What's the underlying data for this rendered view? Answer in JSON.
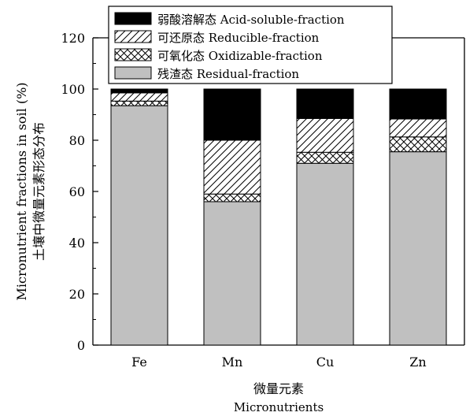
{
  "chart_data": {
    "type": "bar",
    "stacked": true,
    "categories": [
      "Fe",
      "Mn",
      "Cu",
      "Zn"
    ],
    "series": [
      {
        "name": "残渣态 Residual-fraction",
        "values": [
          93.5,
          56,
          71,
          75.5
        ],
        "fill": "#c0c0c0",
        "pattern": "solid"
      },
      {
        "name": "可氧化态 Oxidizable-fraction",
        "values": [
          1.8,
          3,
          4.3,
          5.8
        ],
        "fill": "#ffffff",
        "pattern": "crosshatch"
      },
      {
        "name": "可还原态 Reducible-fraction",
        "values": [
          3.2,
          21,
          13.2,
          7
        ],
        "fill": "#ffffff",
        "pattern": "diagonal"
      },
      {
        "name": "弱酸溶解态 Acid-soluble-fraction",
        "values": [
          1.5,
          20,
          11.5,
          11.7
        ],
        "fill": "#000000",
        "pattern": "solid"
      }
    ],
    "ylabel_en": "Micronutrient fractions in soil (%)",
    "ylabel_cn": "土壤中微量元素形态分布",
    "xlabel_cn": "微量元素",
    "xlabel_en": "Micronutrients",
    "ylim": [
      0,
      120
    ],
    "yticks": [
      0,
      20,
      40,
      60,
      80,
      100,
      120
    ],
    "legend_position": "top-center",
    "legend_order": [
      3,
      2,
      1,
      0
    ],
    "grid": false
  }
}
